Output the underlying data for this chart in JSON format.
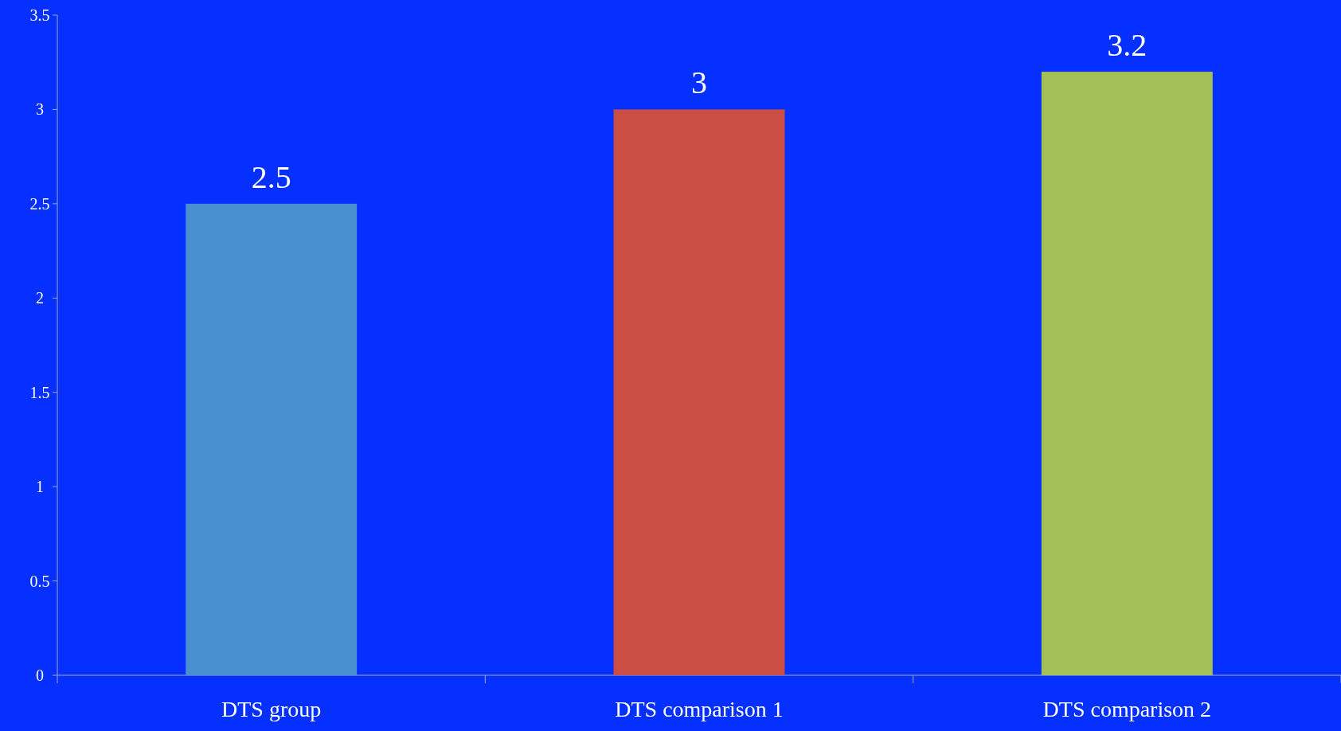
{
  "chart_data": {
    "type": "bar",
    "categories": [
      "DTS group",
      "DTS comparison 1",
      "DTS comparison 2"
    ],
    "values": [
      2.5,
      3,
      3.2
    ],
    "colors": [
      "#4a8fd0",
      "#cc4d44",
      "#a2bf58"
    ],
    "ylim": [
      0,
      3.5
    ],
    "yticks": [
      0,
      0.5,
      1,
      1.5,
      2,
      2.5,
      3,
      3.5
    ],
    "data_labels": true
  }
}
